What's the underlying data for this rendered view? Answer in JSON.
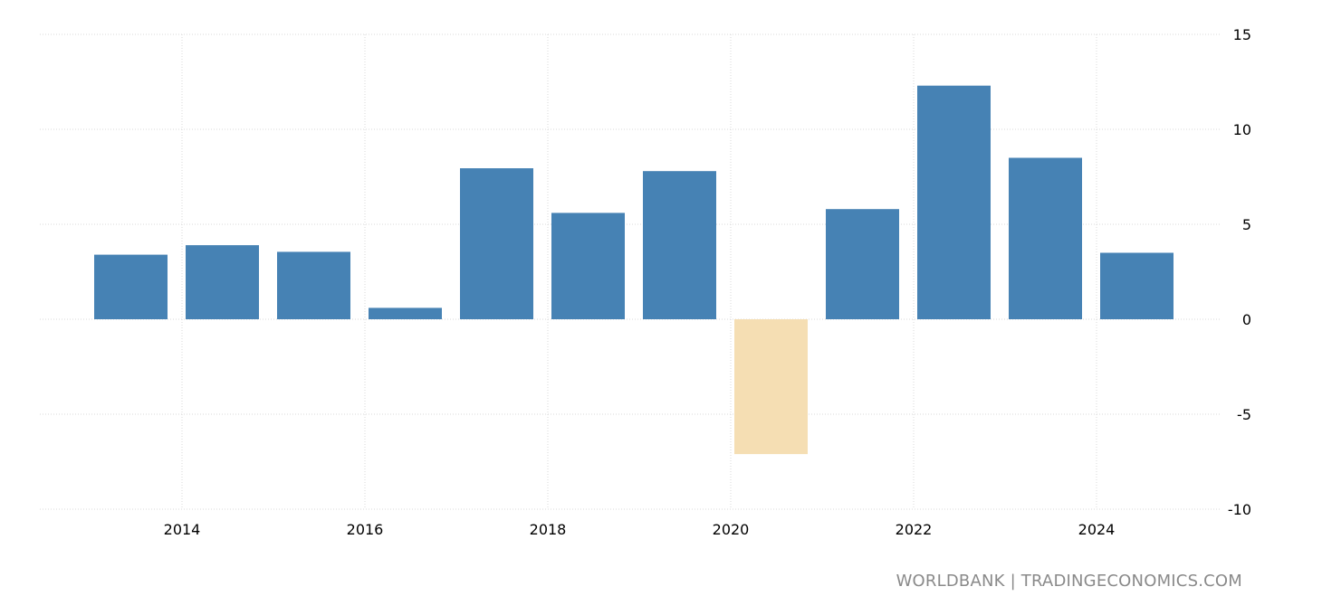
{
  "chart_data": {
    "type": "bar",
    "title": "",
    "xlabel": "",
    "ylabel": "",
    "categories": [
      "2013",
      "2014",
      "2015",
      "2016",
      "2017",
      "2018",
      "2019",
      "2020",
      "2021",
      "2022",
      "2023",
      "2024"
    ],
    "values": [
      3.4,
      3.9,
      3.55,
      0.6,
      7.95,
      5.6,
      7.8,
      -7.1,
      5.8,
      12.3,
      8.5,
      3.5
    ],
    "x_tick_labels": [
      "2014",
      "2016",
      "2018",
      "2020",
      "2022",
      "2024"
    ],
    "y_tick_labels": [
      "15",
      "10",
      "5",
      "0",
      "-5",
      "-10"
    ],
    "ylim": [
      -10,
      15
    ],
    "yticks": [
      15,
      10,
      5,
      0,
      -5,
      -10
    ],
    "grid": true,
    "y_axis_side": "right",
    "colors": {
      "positive": "#4682b4",
      "negative": "#f5deb3",
      "grid": "#d9d9d9"
    }
  },
  "source_text": "WORLDBANK | TRADINGECONOMICS.COM"
}
